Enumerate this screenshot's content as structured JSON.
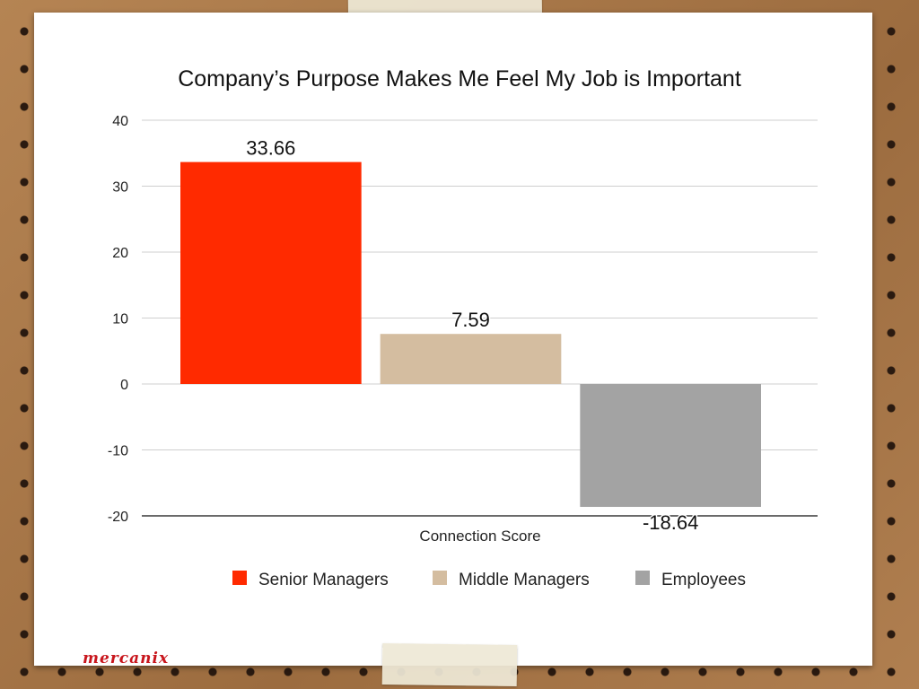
{
  "brand": {
    "logo_text": "mercanix",
    "logo_color": "#c8161d"
  },
  "chart_data": {
    "type": "bar",
    "title": "Company’s Purpose Makes Me Feel My Job is Important",
    "xlabel": "Connection Score",
    "ylabel": "",
    "ylim": [
      -20,
      40
    ],
    "yticks": [
      40,
      30,
      20,
      10,
      0,
      -10,
      -20
    ],
    "grid": true,
    "legend_position": "bottom",
    "categories": [
      "Connection Score"
    ],
    "series": [
      {
        "name": "Senior Managers",
        "values": [
          33.66
        ],
        "label": "33.66",
        "color": "#ff2a00"
      },
      {
        "name": "Middle Managers",
        "values": [
          7.59
        ],
        "label": "7.59",
        "color": "#d4bda0"
      },
      {
        "name": "Employees",
        "values": [
          -18.64
        ],
        "label": "-18.64",
        "color": "#a3a3a3"
      }
    ]
  }
}
